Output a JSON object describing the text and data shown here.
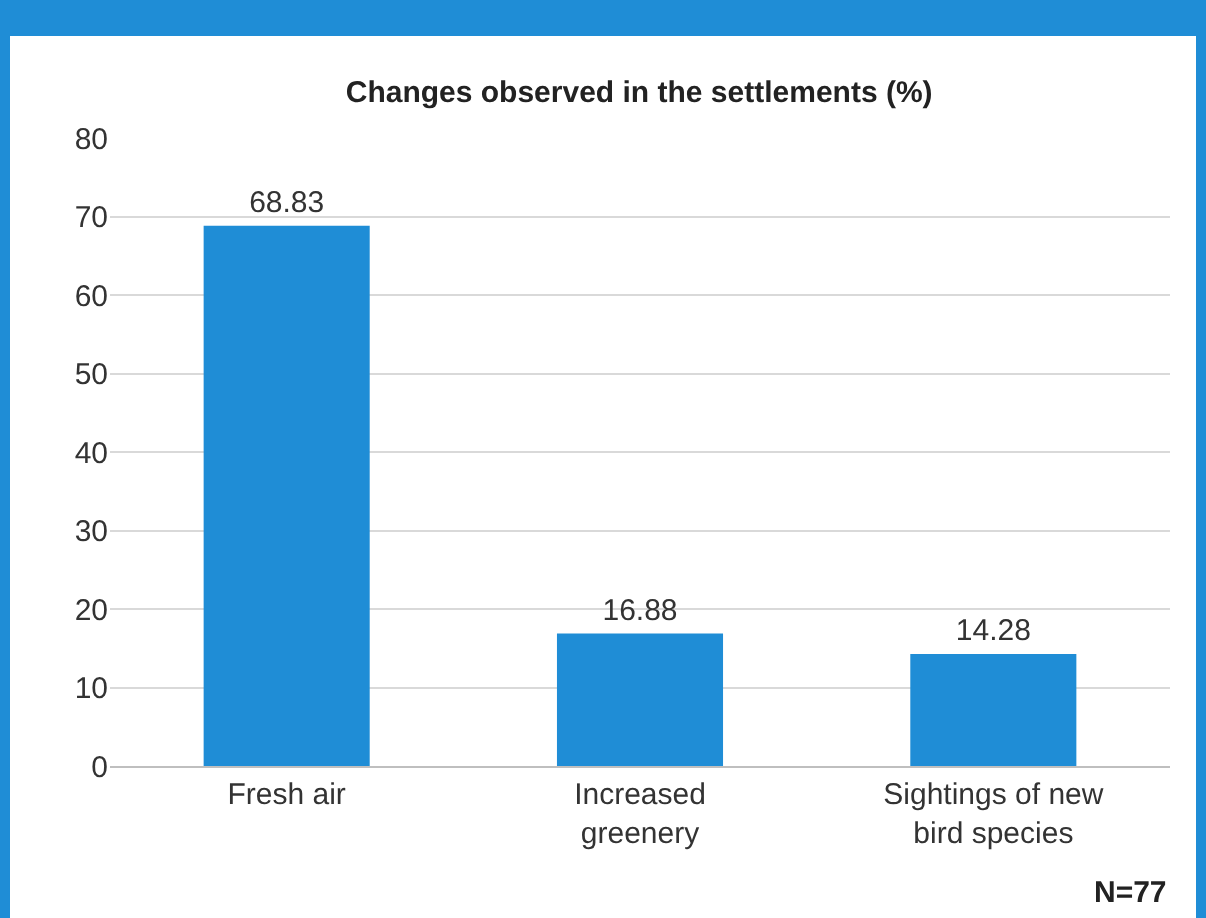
{
  "chart_data": {
    "type": "bar",
    "title": "Changes observed in the settlements (%)",
    "categories": [
      "Fresh air",
      "Increased greenery",
      "Sightings of new bird species"
    ],
    "values": [
      68.83,
      16.88,
      14.28
    ],
    "color": "#1f8dd6",
    "ylim": [
      0,
      80
    ],
    "yticks": [
      0,
      10,
      20,
      30,
      40,
      50,
      60,
      70,
      80
    ],
    "grid": "y",
    "data_labels": true,
    "annotations": [
      "N=77"
    ]
  }
}
